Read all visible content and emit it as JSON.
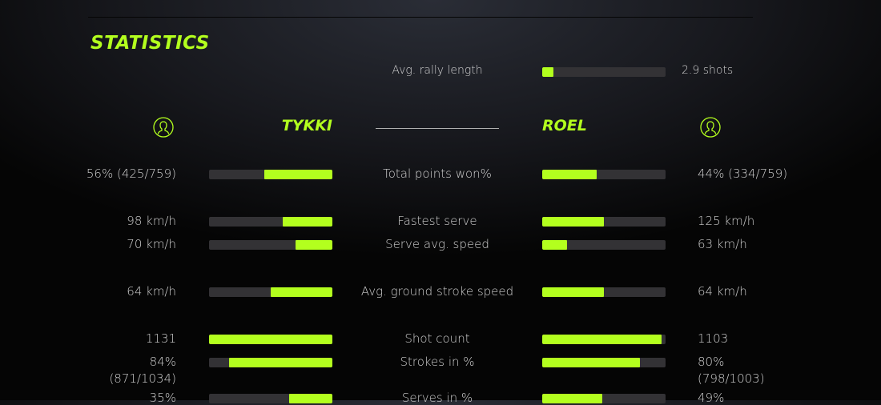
{
  "title": "STATISTICS",
  "accent_color": "#b3ff1e",
  "rally": {
    "label": "Avg. rally length",
    "value": "2.9 shots",
    "fraction": 0.09
  },
  "players": {
    "left": {
      "name": "TYKKI",
      "icon": "user-icon"
    },
    "right": {
      "name": "ROEL",
      "icon": "user-icon"
    }
  },
  "stats": [
    {
      "label": "Total points won%",
      "left": "56% (425/759)",
      "left_sub": "",
      "right": "44% (334/759)",
      "right_sub": "",
      "left_fraction": 0.55,
      "right_fraction": 0.44
    },
    {
      "label": "Fastest serve",
      "left": "98 km/h",
      "left_sub": "",
      "right": "125 km/h",
      "right_sub": "",
      "left_fraction": 0.4,
      "right_fraction": 0.5
    },
    {
      "label": "Serve avg. speed",
      "left": "70 km/h",
      "left_sub": "",
      "right": "63 km/h",
      "right_sub": "",
      "left_fraction": 0.3,
      "right_fraction": 0.2
    },
    {
      "label": "Avg. ground stroke speed",
      "left": "64 km/h",
      "left_sub": "",
      "right": "64 km/h",
      "right_sub": "",
      "left_fraction": 0.5,
      "right_fraction": 0.5
    },
    {
      "label": "Shot count",
      "left": "1131",
      "left_sub": "",
      "right": "1103",
      "right_sub": "",
      "left_fraction": 1.0,
      "right_fraction": 0.97
    },
    {
      "label": "Strokes in %",
      "left": "84%",
      "left_sub": "(871/1034)",
      "right": "80%",
      "right_sub": "(798/1003)",
      "left_fraction": 0.84,
      "right_fraction": 0.79
    },
    {
      "label": "Serves in %",
      "left": "35%",
      "left_sub": "",
      "right": "49%",
      "right_sub": "",
      "left_fraction": 0.35,
      "right_fraction": 0.49
    }
  ]
}
